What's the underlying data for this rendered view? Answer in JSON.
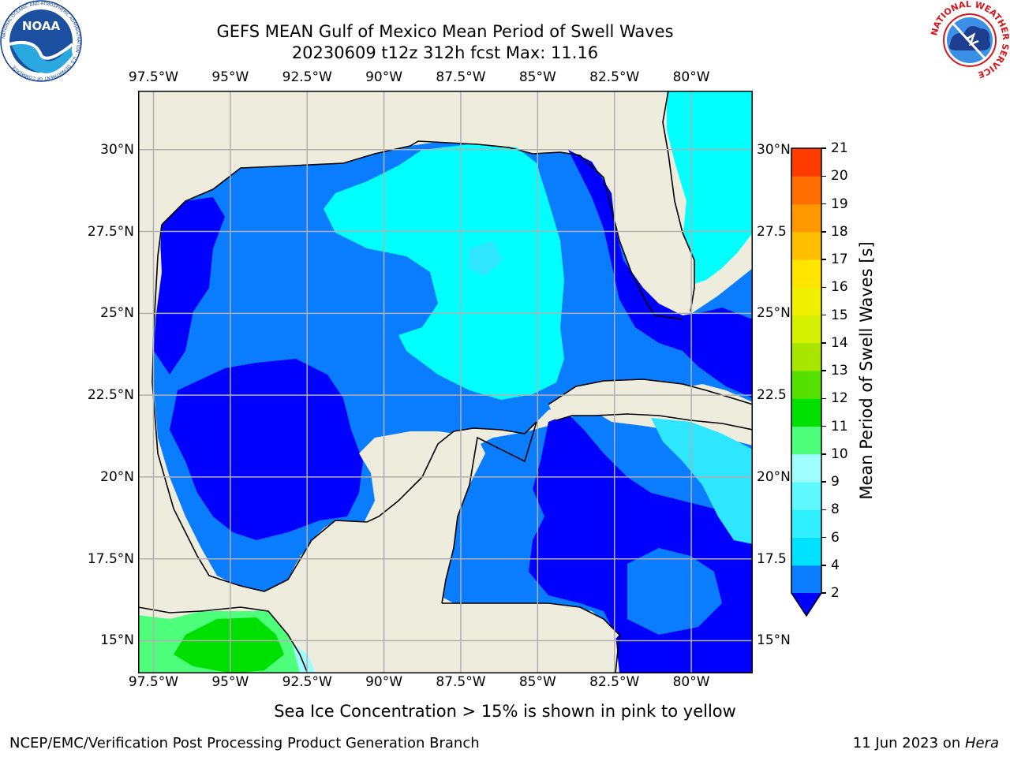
{
  "title_line1": "GEFS MEAN Gulf of Mexico Mean Period of Swell Waves",
  "title_line2": "20230609 t12z 312h fcst   Max: 11.16",
  "note": "Sea Ice Concentration > 15% is shown in pink to yellow",
  "footer_left": "NCEP/EMC/Verification Post Processing Product Generation Branch",
  "footer_date": "11 Jun 2023 on ",
  "footer_host": "Hera",
  "logo_noaa_text": "NOAA",
  "logo_noaa_ring": "NATIONAL OCEANIC AND ATMOSPHERIC ADMINISTRATION · U.S. DEPARTMENT OF COMMERCE",
  "logo_nws_ring": "NATIONAL WEATHER SERVICE",
  "map": {
    "lon_ticks": [
      "97.5°W",
      "95°W",
      "92.5°W",
      "90°W",
      "87.5°W",
      "85°W",
      "82.5°W",
      "80°W"
    ],
    "lat_ticks_left": [
      "30°N",
      "27.5°N",
      "25°N",
      "22.5°N",
      "20°N",
      "17.5°N",
      "15°N"
    ],
    "lat_ticks_right": [
      "30°N",
      "27.5",
      "25°N",
      "22.5",
      "20°N",
      "17.5",
      "15°N"
    ],
    "lon_range": [
      -98,
      -78
    ],
    "lat_range": [
      14,
      31.8
    ]
  },
  "colorbar": {
    "label": "Mean Period of Swell Waves [s]",
    "ticks": [
      "2",
      "4",
      "6",
      "8",
      "9",
      "10",
      "11",
      "12",
      "13",
      "14",
      "15",
      "16",
      "17",
      "18",
      "19",
      "20",
      "21"
    ],
    "colors": [
      "#0a7dff",
      "#00e0ff",
      "#30f0ff",
      "#60f8ff",
      "#a0fdff",
      "#4dff7a",
      "#00e000",
      "#55e000",
      "#a8e600",
      "#d4f000",
      "#f0f000",
      "#ffe400",
      "#ffbe00",
      "#ff9800",
      "#ff6e00",
      "#ff3c00",
      "#ff0000"
    ],
    "extend_color": "#0000ff"
  },
  "colors": {
    "land": "#eeecdc",
    "level_2": "#0000ff",
    "level_3": "#0a7dff",
    "level_4": "#00ffff",
    "level_5": "#2ee6ff",
    "level_9": "#4dff7a",
    "level_10": "#00e000",
    "grid": "#b0b0b0"
  }
}
